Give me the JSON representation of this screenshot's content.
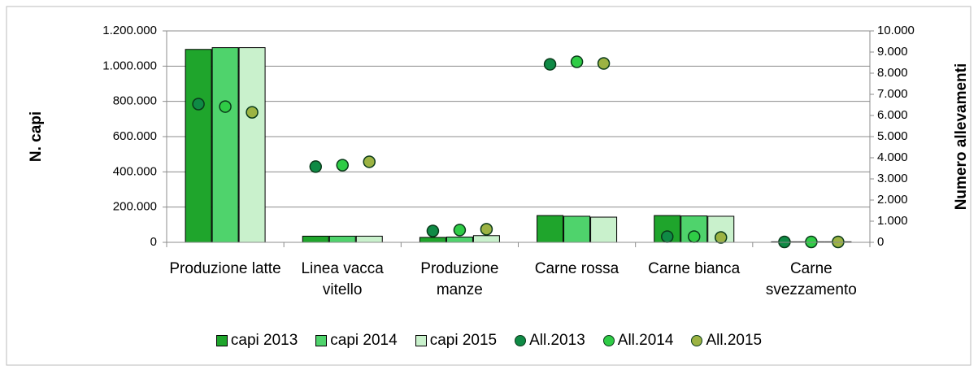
{
  "chart_data": {
    "type": "bar",
    "categories": [
      "Produzione latte",
      "Linea vacca vitello",
      "Produzione manze",
      "Carne rossa",
      "Carne bianca",
      "Carne svezzamento"
    ],
    "ylabel": "N. capi",
    "y2label": "Numero allevamenti",
    "ylim": [
      0,
      1200000
    ],
    "yticks": [
      0,
      {
        "value": 200000,
        "label": "200.000"
      },
      {
        "value": 400000,
        "label": "400.000"
      },
      {
        "value": 600000,
        "label": "600.000"
      },
      {
        "value": 800000,
        "label": "800.000"
      },
      {
        "value": 1000000,
        "label": "1.000.000"
      },
      {
        "value": 1200000,
        "label": "1.200.000"
      }
    ],
    "y2lim": [
      0,
      10000
    ],
    "y2ticks": [
      0,
      {
        "value": 1000,
        "label": "1.000"
      },
      {
        "value": 2000,
        "label": "2.000"
      },
      {
        "value": 3000,
        "label": "3.000"
      },
      {
        "value": 4000,
        "label": "4.000"
      },
      {
        "value": 5000,
        "label": "5.000"
      },
      {
        "value": 6000,
        "label": "6.000"
      },
      {
        "value": 7000,
        "label": "7.000"
      },
      {
        "value": 8000,
        "label": "8.000"
      },
      {
        "value": 9000,
        "label": "9.000"
      },
      {
        "value": 10000,
        "label": "10.000"
      }
    ],
    "grid": true,
    "legend": "bottom",
    "series": [
      {
        "name": "capi 2013",
        "type": "bar",
        "color": "#1fa52c",
        "values": [
          1095000,
          35000,
          28000,
          152000,
          152000,
          3000
        ]
      },
      {
        "name": "capi 2014",
        "type": "bar",
        "color": "#4fd36c",
        "values": [
          1105000,
          35000,
          30000,
          148000,
          150000,
          3000
        ]
      },
      {
        "name": "capi 2015",
        "type": "bar",
        "color": "#c9f1cc",
        "values": [
          1105000,
          35000,
          38000,
          143000,
          148000,
          3000
        ]
      },
      {
        "name": "All.2013",
        "type": "scatter",
        "axis": "y2",
        "color": "#0f8a45",
        "values": [
          6540,
          3580,
          540,
          8420,
          270,
          20
        ]
      },
      {
        "name": "All.2014",
        "type": "scatter",
        "axis": "y2",
        "color": "#2fcc46",
        "values": [
          6420,
          3650,
          580,
          8540,
          270,
          20
        ]
      },
      {
        "name": "All.2015",
        "type": "scatter",
        "axis": "y2",
        "color": "#9cb343",
        "values": [
          6150,
          3810,
          620,
          8460,
          230,
          20
        ]
      }
    ]
  }
}
